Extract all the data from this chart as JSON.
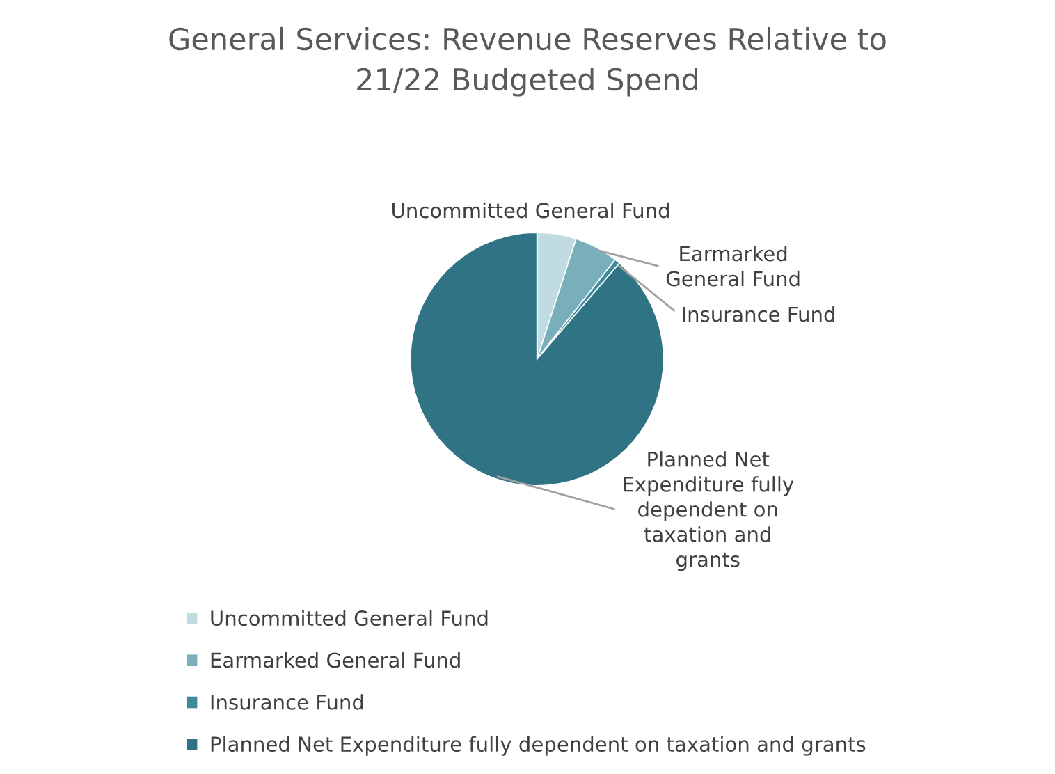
{
  "chart_data": {
    "type": "pie",
    "title": "General Services: Revenue Reserves Relative to\n21/22 Budgeted Spend",
    "categories": [
      "Uncommitted General Fund",
      "Earmarked General Fund",
      "Insurance Fund",
      "Planned Net Expenditure fully dependent on taxation and grants"
    ],
    "values": [
      5.0,
      5.6,
      0.7,
      88.7
    ],
    "colors": [
      "#c0dce2",
      "#78afbb",
      "#3d8a99",
      "#2f7385"
    ],
    "annotations": [
      "Uncommitted General Fund",
      "Earmarked\nGeneral Fund",
      "Insurance Fund",
      "Planned Net\nExpenditure fully\ndependent on\ntaxation and\ngrants"
    ],
    "legend": "bottom left"
  }
}
